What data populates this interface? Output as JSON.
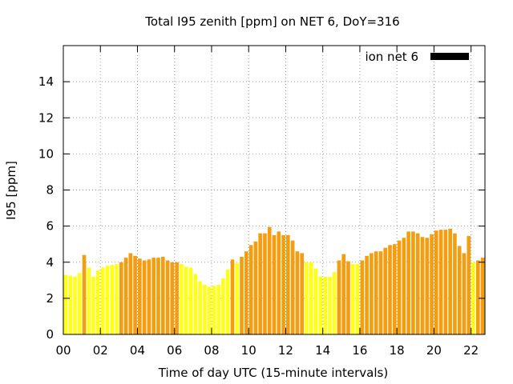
{
  "chart_data": {
    "type": "bar",
    "title": "Total I95 zenith [ppm] on NET 6, DoY=316",
    "xlabel": "Time of day UTC (15-minute intervals)",
    "ylabel": "I95 [ppm]",
    "xlim": [
      0,
      22.75
    ],
    "ylim": [
      0,
      16
    ],
    "x_ticks": [
      "00",
      "02",
      "04",
      "06",
      "08",
      "10",
      "12",
      "14",
      "16",
      "18",
      "20",
      "22"
    ],
    "y_ticks": [
      "0",
      "2",
      "4",
      "6",
      "8",
      "10",
      "12",
      "14"
    ],
    "grid": true,
    "legend": {
      "position": "top-right",
      "entries": [
        {
          "label": "ion net 6",
          "color": "#000000"
        }
      ]
    },
    "colors": {
      "yellow": "#ffff1a",
      "orange": "#f59c0f"
    },
    "bar_width_hours": 0.2,
    "bars": [
      {
        "x": 0.125,
        "v": 3.3,
        "c": "yellow"
      },
      {
        "x": 0.375,
        "v": 3.25,
        "c": "yellow"
      },
      {
        "x": 0.625,
        "v": 3.2,
        "c": "yellow"
      },
      {
        "x": 0.875,
        "v": 3.4,
        "c": "yellow"
      },
      {
        "x": 1.125,
        "v": 4.4,
        "c": "orange"
      },
      {
        "x": 1.375,
        "v": 3.7,
        "c": "yellow"
      },
      {
        "x": 1.625,
        "v": 3.2,
        "c": "yellow"
      },
      {
        "x": 1.875,
        "v": 3.55,
        "c": "yellow"
      },
      {
        "x": 2.125,
        "v": 3.7,
        "c": "yellow"
      },
      {
        "x": 2.375,
        "v": 3.8,
        "c": "yellow"
      },
      {
        "x": 2.625,
        "v": 3.85,
        "c": "yellow"
      },
      {
        "x": 2.875,
        "v": 3.9,
        "c": "yellow"
      },
      {
        "x": 3.125,
        "v": 4.0,
        "c": "orange"
      },
      {
        "x": 3.375,
        "v": 4.25,
        "c": "orange"
      },
      {
        "x": 3.625,
        "v": 4.5,
        "c": "orange"
      },
      {
        "x": 3.875,
        "v": 4.35,
        "c": "orange"
      },
      {
        "x": 4.125,
        "v": 4.2,
        "c": "orange"
      },
      {
        "x": 4.375,
        "v": 4.1,
        "c": "orange"
      },
      {
        "x": 4.625,
        "v": 4.15,
        "c": "orange"
      },
      {
        "x": 4.875,
        "v": 4.25,
        "c": "orange"
      },
      {
        "x": 5.125,
        "v": 4.25,
        "c": "orange"
      },
      {
        "x": 5.375,
        "v": 4.3,
        "c": "orange"
      },
      {
        "x": 5.625,
        "v": 4.1,
        "c": "orange"
      },
      {
        "x": 5.875,
        "v": 4.0,
        "c": "orange"
      },
      {
        "x": 6.125,
        "v": 4.0,
        "c": "orange"
      },
      {
        "x": 6.375,
        "v": 3.9,
        "c": "yellow"
      },
      {
        "x": 6.625,
        "v": 3.75,
        "c": "yellow"
      },
      {
        "x": 6.875,
        "v": 3.7,
        "c": "yellow"
      },
      {
        "x": 7.125,
        "v": 3.35,
        "c": "yellow"
      },
      {
        "x": 7.375,
        "v": 2.95,
        "c": "yellow"
      },
      {
        "x": 7.625,
        "v": 2.75,
        "c": "yellow"
      },
      {
        "x": 7.875,
        "v": 2.65,
        "c": "yellow"
      },
      {
        "x": 8.125,
        "v": 2.7,
        "c": "yellow"
      },
      {
        "x": 8.375,
        "v": 2.75,
        "c": "yellow"
      },
      {
        "x": 8.625,
        "v": 3.1,
        "c": "yellow"
      },
      {
        "x": 8.875,
        "v": 3.6,
        "c": "yellow"
      },
      {
        "x": 9.125,
        "v": 4.15,
        "c": "orange"
      },
      {
        "x": 9.375,
        "v": 3.95,
        "c": "yellow"
      },
      {
        "x": 9.625,
        "v": 4.3,
        "c": "orange"
      },
      {
        "x": 9.875,
        "v": 4.6,
        "c": "orange"
      },
      {
        "x": 10.125,
        "v": 4.95,
        "c": "orange"
      },
      {
        "x": 10.375,
        "v": 5.15,
        "c": "orange"
      },
      {
        "x": 10.625,
        "v": 5.6,
        "c": "orange"
      },
      {
        "x": 10.875,
        "v": 5.6,
        "c": "orange"
      },
      {
        "x": 11.125,
        "v": 5.95,
        "c": "orange"
      },
      {
        "x": 11.375,
        "v": 5.5,
        "c": "orange"
      },
      {
        "x": 11.625,
        "v": 5.7,
        "c": "orange"
      },
      {
        "x": 11.875,
        "v": 5.5,
        "c": "orange"
      },
      {
        "x": 12.125,
        "v": 5.5,
        "c": "orange"
      },
      {
        "x": 12.375,
        "v": 5.2,
        "c": "orange"
      },
      {
        "x": 12.625,
        "v": 4.6,
        "c": "orange"
      },
      {
        "x": 12.875,
        "v": 4.5,
        "c": "orange"
      },
      {
        "x": 13.125,
        "v": 4.0,
        "c": "yellow"
      },
      {
        "x": 13.375,
        "v": 4.0,
        "c": "yellow"
      },
      {
        "x": 13.625,
        "v": 3.65,
        "c": "yellow"
      },
      {
        "x": 13.875,
        "v": 3.2,
        "c": "yellow"
      },
      {
        "x": 14.125,
        "v": 3.2,
        "c": "yellow"
      },
      {
        "x": 14.375,
        "v": 3.2,
        "c": "yellow"
      },
      {
        "x": 14.625,
        "v": 3.45,
        "c": "yellow"
      },
      {
        "x": 14.875,
        "v": 4.1,
        "c": "orange"
      },
      {
        "x": 15.125,
        "v": 4.45,
        "c": "orange"
      },
      {
        "x": 15.375,
        "v": 4.05,
        "c": "orange"
      },
      {
        "x": 15.625,
        "v": 3.9,
        "c": "yellow"
      },
      {
        "x": 15.875,
        "v": 3.9,
        "c": "yellow"
      },
      {
        "x": 16.125,
        "v": 4.1,
        "c": "orange"
      },
      {
        "x": 16.375,
        "v": 4.35,
        "c": "orange"
      },
      {
        "x": 16.625,
        "v": 4.5,
        "c": "orange"
      },
      {
        "x": 16.875,
        "v": 4.6,
        "c": "orange"
      },
      {
        "x": 17.125,
        "v": 4.6,
        "c": "orange"
      },
      {
        "x": 17.375,
        "v": 4.8,
        "c": "orange"
      },
      {
        "x": 17.625,
        "v": 4.95,
        "c": "orange"
      },
      {
        "x": 17.875,
        "v": 5.0,
        "c": "orange"
      },
      {
        "x": 18.125,
        "v": 5.2,
        "c": "orange"
      },
      {
        "x": 18.375,
        "v": 5.35,
        "c": "orange"
      },
      {
        "x": 18.625,
        "v": 5.7,
        "c": "orange"
      },
      {
        "x": 18.875,
        "v": 5.7,
        "c": "orange"
      },
      {
        "x": 19.125,
        "v": 5.6,
        "c": "orange"
      },
      {
        "x": 19.375,
        "v": 5.4,
        "c": "orange"
      },
      {
        "x": 19.625,
        "v": 5.35,
        "c": "orange"
      },
      {
        "x": 19.875,
        "v": 5.55,
        "c": "orange"
      },
      {
        "x": 20.125,
        "v": 5.75,
        "c": "orange"
      },
      {
        "x": 20.375,
        "v": 5.8,
        "c": "orange"
      },
      {
        "x": 20.625,
        "v": 5.8,
        "c": "orange"
      },
      {
        "x": 20.875,
        "v": 5.85,
        "c": "orange"
      },
      {
        "x": 21.125,
        "v": 5.6,
        "c": "orange"
      },
      {
        "x": 21.375,
        "v": 4.9,
        "c": "orange"
      },
      {
        "x": 21.625,
        "v": 4.5,
        "c": "orange"
      },
      {
        "x": 21.875,
        "v": 5.45,
        "c": "orange"
      },
      {
        "x": 22.125,
        "v": 4.0,
        "c": "yellow"
      },
      {
        "x": 22.375,
        "v": 4.1,
        "c": "orange"
      },
      {
        "x": 22.625,
        "v": 4.25,
        "c": "orange"
      }
    ]
  }
}
